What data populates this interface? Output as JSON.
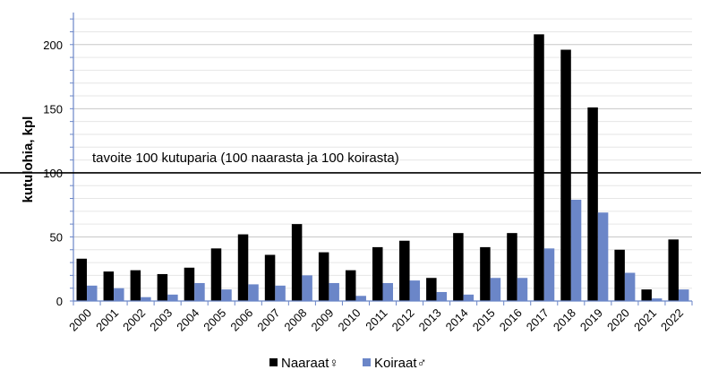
{
  "chart_data": {
    "type": "bar",
    "title": "",
    "xlabel": "",
    "ylabel": "kutulohia, kpl",
    "ylim": [
      0,
      225
    ],
    "yticks": [
      0,
      50,
      100,
      150,
      200
    ],
    "grid": true,
    "legend_position": "bottom",
    "categories": [
      "2000",
      "2001",
      "2002",
      "2003",
      "2004",
      "2005",
      "2006",
      "2007",
      "2008",
      "2009",
      "2010",
      "2011",
      "2012",
      "2013",
      "2014",
      "2015",
      "2016",
      "2017",
      "2018",
      "2019",
      "2020",
      "2021",
      "2022"
    ],
    "series": [
      {
        "name": "Naaraat♀",
        "color": "#000000",
        "values": [
          33,
          23,
          24,
          21,
          26,
          41,
          52,
          36,
          60,
          38,
          24,
          42,
          47,
          18,
          53,
          42,
          53,
          208,
          196,
          151,
          40,
          9,
          48
        ]
      },
      {
        "name": "Koiraat♂",
        "color": "#6B86C8",
        "values": [
          12,
          10,
          3,
          5,
          14,
          9,
          13,
          12,
          20,
          14,
          4,
          14,
          16,
          7,
          5,
          18,
          18,
          41,
          79,
          69,
          22,
          2,
          9
        ]
      }
    ],
    "reference_line": {
      "value": 100,
      "label": "tavoite 100 kutuparia (100 naarasta ja 100 koirasta)"
    }
  }
}
